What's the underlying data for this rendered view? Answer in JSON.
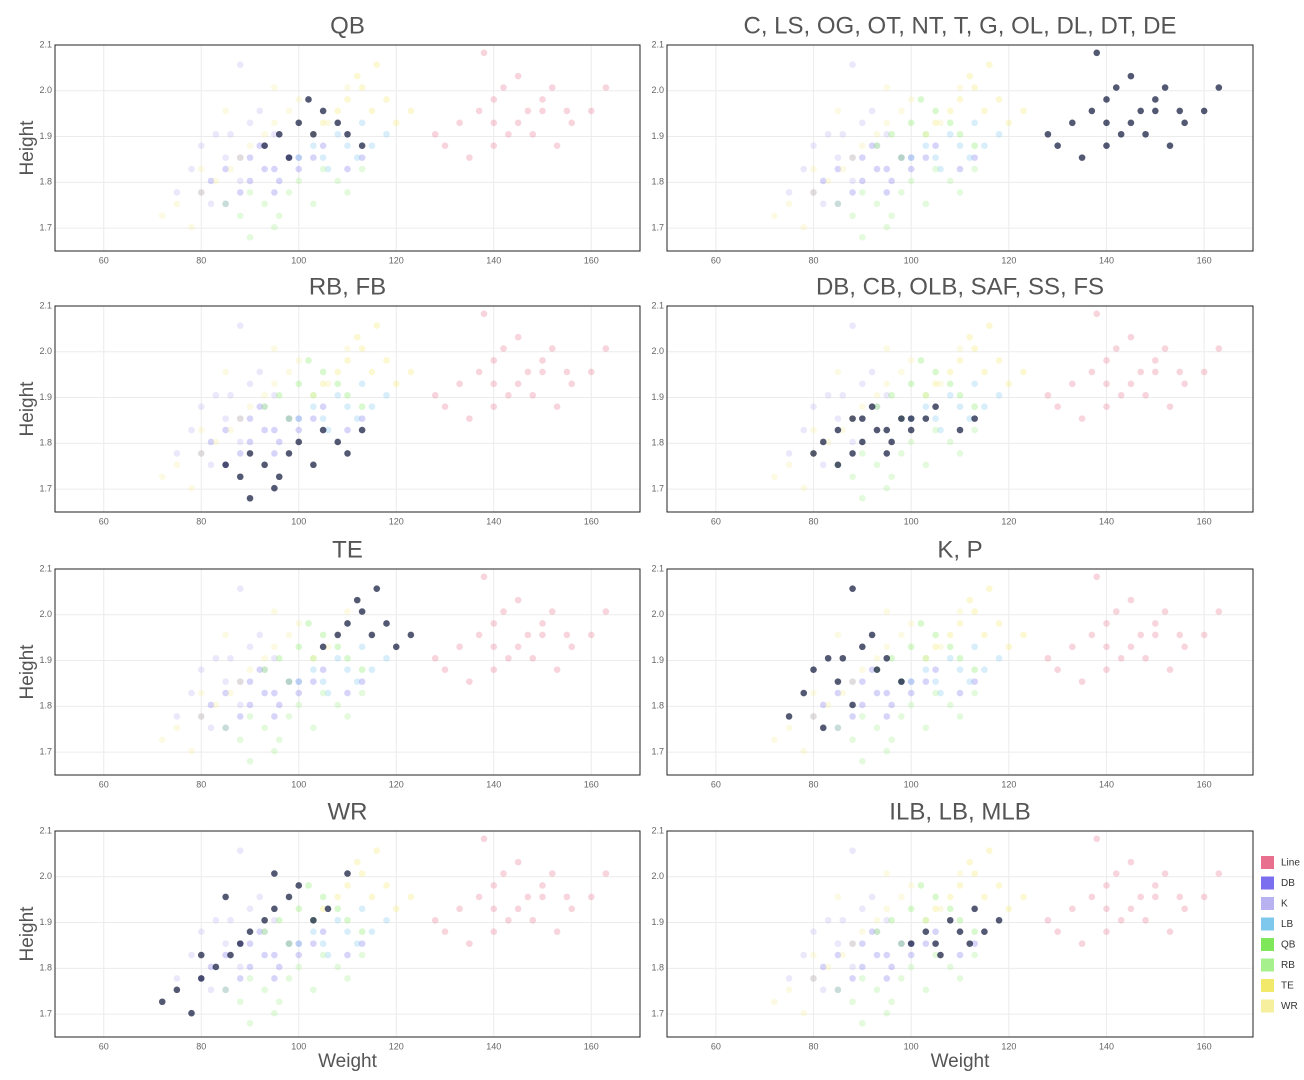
{
  "chart_data": {
    "type": "scatter",
    "xlabel": "Weight",
    "ylabel": "Height",
    "xlim": [
      50,
      170
    ],
    "ylim": [
      1.65,
      2.1
    ],
    "xticks": [
      60,
      80,
      100,
      120,
      140,
      160
    ],
    "yticks": [
      1.7,
      1.8,
      1.9,
      {
        "value": 2,
        "label": "2.0"
      },
      2.1
    ],
    "grid": true,
    "legend": "right",
    "highlight_color": "#0b1238",
    "panels": [
      {
        "title": "QB",
        "highlight": "QB"
      },
      {
        "title": "C, LS, OG, OT, NT, T, G, OL, DL, DT, DE",
        "highlight": "Line"
      },
      {
        "title": "RB, FB",
        "highlight": "RB"
      },
      {
        "title": "DB, CB, OLB, SAF, SS, FS",
        "highlight": "DB"
      },
      {
        "title": "TE",
        "highlight": "TE"
      },
      {
        "title": "K, P",
        "highlight": "K"
      },
      {
        "title": "WR",
        "highlight": "WR"
      },
      {
        "title": "ILB, LB, MLB",
        "highlight": "LB"
      }
    ],
    "series": [
      {
        "name": "Line",
        "color": "#e8708e",
        "x": [
          128,
          133,
          137,
          140,
          142,
          145,
          148,
          150,
          153,
          156,
          160,
          135,
          140,
          145,
          150,
          138,
          143,
          147,
          152,
          130,
          163,
          140,
          155
        ],
        "values": [
          1.905,
          1.93,
          1.956,
          1.981,
          2.007,
          1.93,
          1.905,
          1.956,
          1.88,
          1.93,
          1.956,
          1.854,
          1.88,
          2.032,
          1.981,
          2.083,
          1.905,
          1.956,
          2.007,
          1.88,
          2.007,
          1.93,
          1.956
        ]
      },
      {
        "name": "DB",
        "color": "#7b6ff0",
        "x": [
          82,
          85,
          88,
          90,
          93,
          95,
          98,
          100,
          103,
          105,
          88,
          92,
          96,
          100,
          85,
          90,
          95,
          110,
          80,
          113
        ],
        "values": [
          1.803,
          1.829,
          1.854,
          1.803,
          1.829,
          1.778,
          1.854,
          1.829,
          1.854,
          1.88,
          1.778,
          1.88,
          1.803,
          1.854,
          1.753,
          1.854,
          1.829,
          1.829,
          1.778,
          1.854
        ]
      },
      {
        "name": "K",
        "color": "#b9b2f0",
        "x": [
          75,
          78,
          80,
          83,
          85,
          88,
          90,
          93,
          95,
          98,
          88,
          82,
          86,
          92
        ],
        "values": [
          1.778,
          1.829,
          1.88,
          1.905,
          1.854,
          2.057,
          1.93,
          1.88,
          1.905,
          1.854,
          1.803,
          1.753,
          1.905,
          1.956
        ]
      },
      {
        "name": "LB",
        "color": "#7ec8ee",
        "x": [
          100,
          103,
          105,
          108,
          110,
          112,
          115,
          118,
          106,
          113
        ],
        "values": [
          1.854,
          1.88,
          1.854,
          1.905,
          1.88,
          1.854,
          1.88,
          1.905,
          1.829,
          1.93
        ]
      },
      {
        "name": "QB",
        "color": "#7ee85a",
        "x": [
          93,
          96,
          100,
          103,
          105,
          108,
          110,
          98,
          113,
          102
        ],
        "values": [
          1.88,
          1.905,
          1.93,
          1.905,
          1.956,
          1.93,
          1.905,
          1.854,
          1.88,
          1.981
        ]
      },
      {
        "name": "RB",
        "color": "#a6f08e",
        "x": [
          85,
          88,
          90,
          93,
          95,
          98,
          100,
          103,
          105,
          108,
          110,
          113,
          90,
          96
        ],
        "values": [
          1.753,
          1.727,
          1.778,
          1.753,
          1.702,
          1.778,
          1.803,
          1.753,
          1.829,
          1.803,
          1.778,
          1.829,
          1.68,
          1.727
        ]
      },
      {
        "name": "TE",
        "color": "#f2e96a",
        "x": [
          105,
          108,
          110,
          113,
          115,
          118,
          120,
          123,
          112,
          116
        ],
        "values": [
          1.93,
          1.956,
          1.981,
          2.007,
          1.956,
          1.981,
          1.93,
          1.956,
          2.032,
          2.057
        ]
      },
      {
        "name": "WR",
        "color": "#f5ef9e",
        "x": [
          72,
          75,
          78,
          80,
          83,
          86,
          88,
          90,
          93,
          95,
          98,
          100,
          103,
          106,
          80,
          85,
          95,
          110
        ],
        "values": [
          1.727,
          1.753,
          1.702,
          1.778,
          1.803,
          1.829,
          1.854,
          1.88,
          1.905,
          1.93,
          1.956,
          1.981,
          1.905,
          1.93,
          1.829,
          1.956,
          2.007,
          2.007
        ]
      }
    ]
  }
}
